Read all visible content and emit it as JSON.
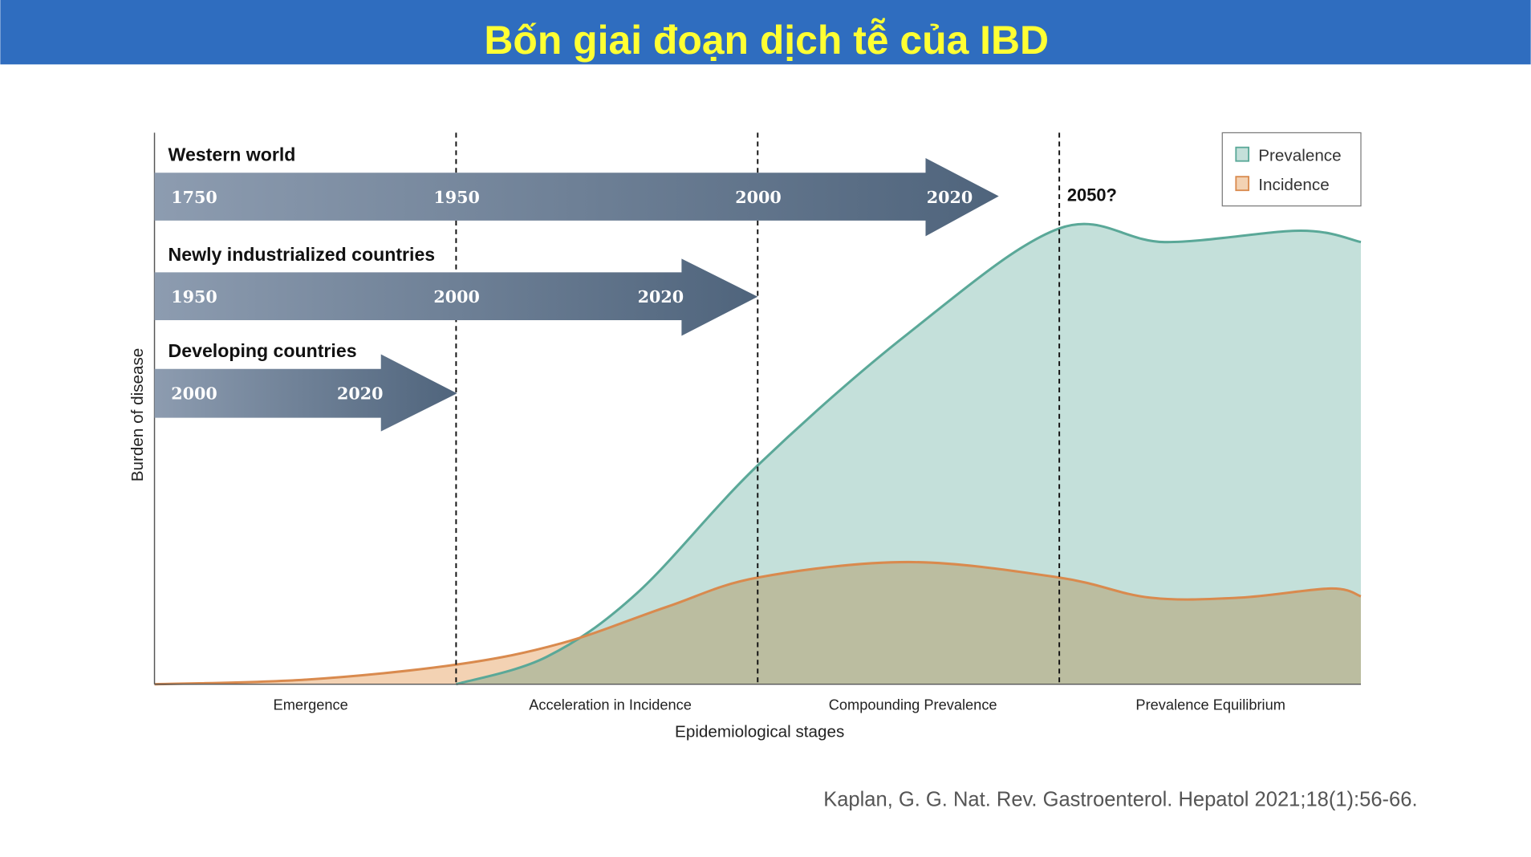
{
  "header": {
    "title": "Bốn giai đoạn dịch tễ của IBD",
    "bg_color": "#2F6DBF",
    "title_color": "#FFFF33"
  },
  "timelines": [
    {
      "label": "Western world",
      "years": [
        "1750",
        "1950",
        "2000",
        "2020"
      ],
      "end_stage": 2.8
    },
    {
      "label": "Newly industrialized countries",
      "years": [
        "1950",
        "2000",
        "2020"
      ],
      "end_stage": 2.0
    },
    {
      "label": "Developing countries",
      "years": [
        "2000",
        "2020"
      ],
      "end_stage": 1.0
    }
  ],
  "future_label": "2050?",
  "chart_data": {
    "type": "area",
    "title": "",
    "xlabel": "Epidemiological stages",
    "ylabel": "Burden of disease",
    "categories": [
      "Emergence",
      "Acceleration in Incidence",
      "Compounding Prevalence",
      "Prevalence Equilibrium"
    ],
    "xlim": [
      0,
      4
    ],
    "ylim": [
      0,
      100
    ],
    "stage_boundaries": [
      1,
      2,
      3
    ],
    "legend": {
      "position": "top-right",
      "entries": [
        "Prevalence",
        "Incidence"
      ]
    },
    "series": [
      {
        "name": "Prevalence",
        "color": "#5AA898",
        "fill": "#C4E0DA",
        "x": [
          1.0,
          1.3,
          1.6,
          2.0,
          2.5,
          3.0,
          3.35,
          3.8,
          4.0
        ],
        "y": [
          0,
          6,
          20,
          48,
          77,
          100,
          97,
          99.5,
          97
        ]
      },
      {
        "name": "Incidence",
        "color": "#D98A4E",
        "fill": "#F3D2B3",
        "x": [
          0,
          0.5,
          1.0,
          1.35,
          1.7,
          2.0,
          2.5,
          3.0,
          3.3,
          3.6,
          3.9,
          4.0
        ],
        "y": [
          0,
          1,
          4.3,
          9,
          17,
          23.4,
          26.8,
          23.4,
          19,
          19,
          21,
          19.3
        ]
      }
    ]
  },
  "citation": "Kaplan, G. G. Nat. Rev. Gastroenterol. Hepatol 2021;18(1):56-66."
}
